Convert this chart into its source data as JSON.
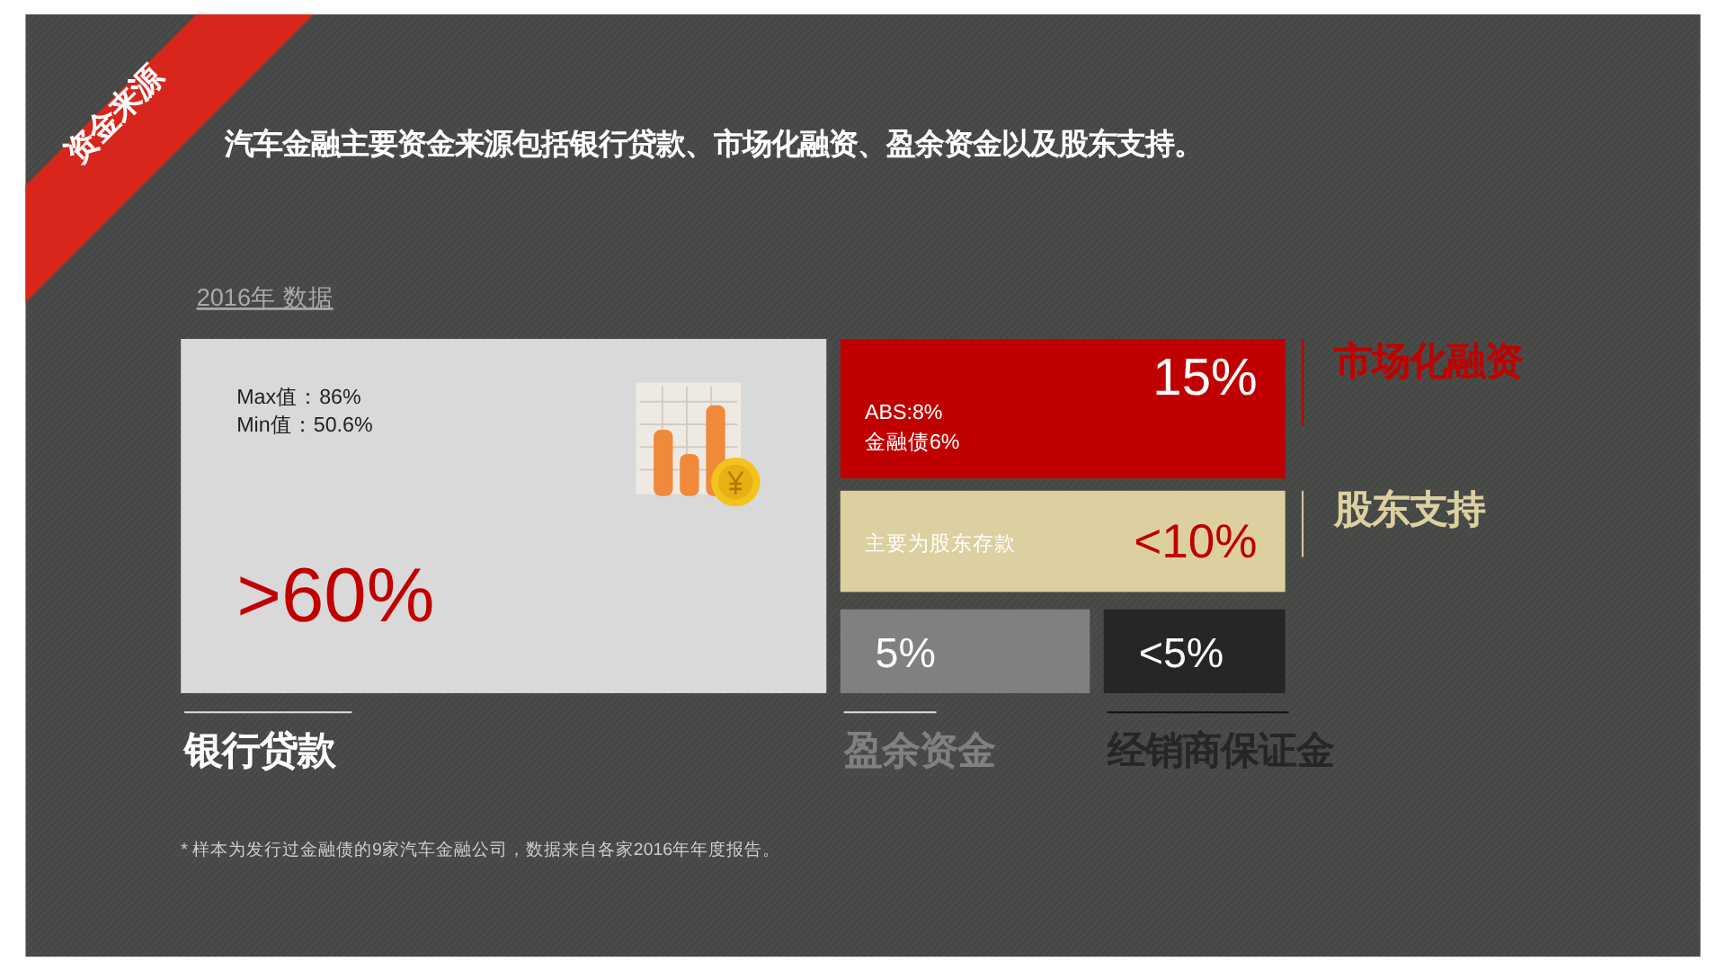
{
  "chart_data": {
    "type": "other",
    "title": "资金来源",
    "subtitle": "汽车金融主要资金来源包括银行贷款、市场化融资、盈余资金以及股东支持。",
    "categories": [
      "银行贷款",
      "市场化融资",
      "股东支持",
      "盈余资金",
      "经销商保证金"
    ],
    "values": [
      60,
      15,
      10,
      5,
      5
    ],
    "value_labels": [
      ">60%",
      "15%",
      "<10%",
      "5%",
      "<5%"
    ],
    "colors": [
      "#d9d9d9",
      "#c00000",
      "#ddd0a0",
      "#808080",
      "#262626"
    ],
    "annotations": [
      "2016年 数据",
      {
        "text": "Max值：86%",
        "x": "银行贷款"
      },
      {
        "text": "Min值：50.6%",
        "x": "银行贷款"
      },
      {
        "text": "ABS:8%",
        "x": "市场化融资"
      },
      {
        "text": "金融债6%",
        "x": "市场化融资"
      },
      {
        "text": "主要为股东存款",
        "x": "股东支持"
      },
      "* 样本为发行过金融债的9家汽车金融公司，数据来自各家2016年年度报告。"
    ]
  }
}
